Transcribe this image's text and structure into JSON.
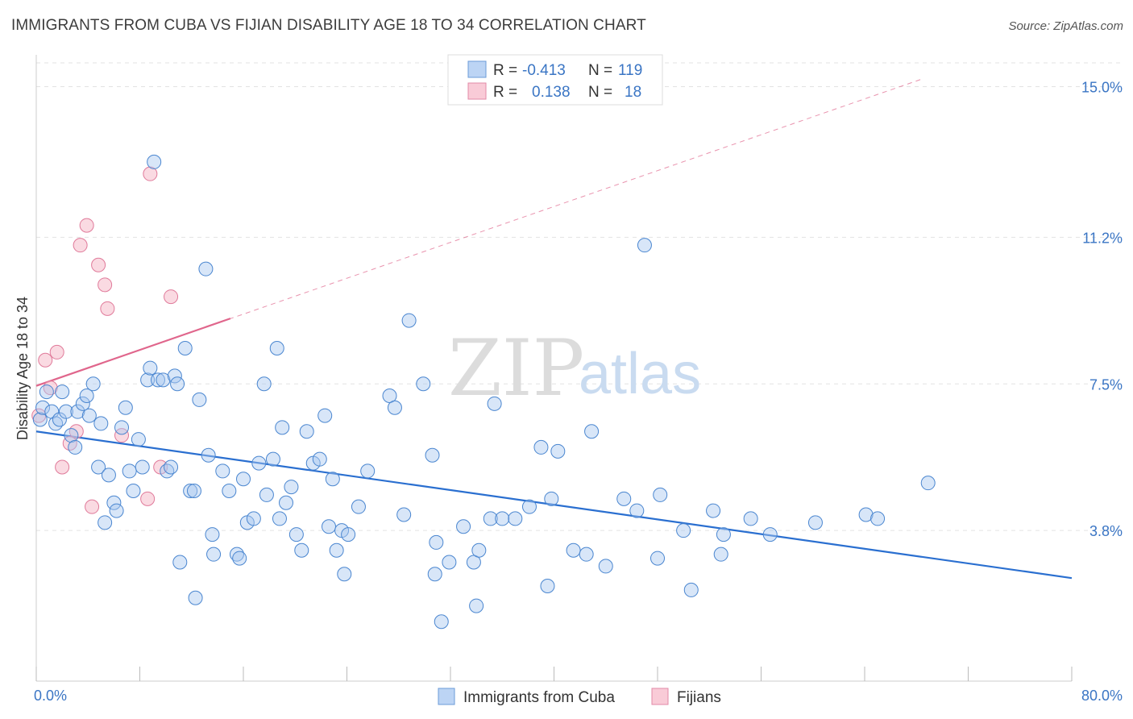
{
  "title": "IMMIGRANTS FROM CUBA VS FIJIAN DISABILITY AGE 18 TO 34 CORRELATION CHART",
  "source": "Source: ZipAtlas.com",
  "watermark": {
    "zip": "ZIP",
    "atlas": "atlas"
  },
  "colors": {
    "blue": "#a9c8ef",
    "blue_stroke": "#4a86d0",
    "blue_line": "#2a6fd0",
    "pink": "#f6bccb",
    "pink_stroke": "#e07a9a",
    "pink_line": "#e0668c",
    "grid": "#e3e3e3",
    "tick_text": "#3a75c4"
  },
  "legend": {
    "rows": [
      {
        "r_label": "R =",
        "r_value": "-0.413",
        "n_label": "N =",
        "n_value": "119"
      },
      {
        "r_label": "R =",
        "r_value": "0.138",
        "n_label": "N =",
        "n_value": "18"
      }
    ]
  },
  "bottom_legend": [
    "Immigrants from Cuba",
    "Fijians"
  ],
  "chart_data": {
    "type": "scatter",
    "title": "IMMIGRANTS FROM CUBA VS FIJIAN DISABILITY AGE 18 TO 34 CORRELATION CHART",
    "xlabel": "",
    "ylabel": "Disability Age 18 to 34",
    "xlim": [
      0,
      80
    ],
    "ylim": [
      0,
      15.6
    ],
    "x_tick_labels": [
      "0.0%",
      "80.0%"
    ],
    "y_ticks": [
      3.8,
      7.5,
      11.2,
      15.0
    ],
    "y_tick_labels": [
      "3.8%",
      "7.5%",
      "11.2%",
      "15.0%"
    ],
    "grid": true,
    "legend_position": "top-center",
    "series": [
      {
        "name": "Immigrants from Cuba",
        "color": "#a9c8ef",
        "trend": {
          "x": [
            0,
            80
          ],
          "y": [
            6.3,
            2.6
          ]
        },
        "points": [
          [
            0.3,
            6.6
          ],
          [
            0.5,
            6.9
          ],
          [
            0.8,
            7.3
          ],
          [
            1.2,
            6.8
          ],
          [
            1.5,
            6.5
          ],
          [
            1.8,
            6.6
          ],
          [
            2.0,
            7.3
          ],
          [
            2.3,
            6.8
          ],
          [
            2.7,
            6.2
          ],
          [
            3.0,
            5.9
          ],
          [
            3.2,
            6.8
          ],
          [
            3.6,
            7.0
          ],
          [
            3.9,
            7.2
          ],
          [
            4.1,
            6.7
          ],
          [
            4.4,
            7.5
          ],
          [
            4.8,
            5.4
          ],
          [
            5.0,
            6.5
          ],
          [
            5.3,
            4.0
          ],
          [
            5.6,
            5.2
          ],
          [
            6.0,
            4.5
          ],
          [
            6.2,
            4.3
          ],
          [
            6.6,
            6.4
          ],
          [
            6.9,
            6.9
          ],
          [
            7.2,
            5.3
          ],
          [
            7.5,
            4.8
          ],
          [
            7.9,
            6.1
          ],
          [
            8.2,
            5.4
          ],
          [
            8.6,
            7.6
          ],
          [
            8.8,
            7.9
          ],
          [
            9.1,
            13.1
          ],
          [
            9.4,
            7.6
          ],
          [
            9.8,
            7.6
          ],
          [
            10.1,
            5.3
          ],
          [
            10.4,
            5.4
          ],
          [
            10.7,
            7.7
          ],
          [
            10.9,
            7.5
          ],
          [
            11.1,
            3.0
          ],
          [
            11.5,
            8.4
          ],
          [
            11.9,
            4.8
          ],
          [
            12.2,
            4.8
          ],
          [
            12.3,
            2.1
          ],
          [
            12.6,
            7.1
          ],
          [
            13.1,
            10.4
          ],
          [
            13.3,
            5.7
          ],
          [
            13.6,
            3.7
          ],
          [
            13.7,
            3.2
          ],
          [
            14.4,
            5.3
          ],
          [
            14.9,
            4.8
          ],
          [
            15.5,
            3.2
          ],
          [
            15.7,
            3.1
          ],
          [
            16.0,
            5.1
          ],
          [
            16.3,
            4.0
          ],
          [
            16.8,
            4.1
          ],
          [
            17.2,
            5.5
          ],
          [
            17.6,
            7.5
          ],
          [
            17.8,
            4.7
          ],
          [
            18.3,
            5.6
          ],
          [
            18.6,
            8.4
          ],
          [
            18.8,
            4.1
          ],
          [
            19.0,
            6.4
          ],
          [
            19.3,
            4.5
          ],
          [
            19.7,
            4.9
          ],
          [
            20.1,
            3.7
          ],
          [
            20.5,
            3.3
          ],
          [
            20.9,
            6.3
          ],
          [
            21.4,
            5.5
          ],
          [
            21.9,
            5.6
          ],
          [
            22.3,
            6.7
          ],
          [
            22.6,
            3.9
          ],
          [
            22.9,
            5.1
          ],
          [
            23.2,
            3.3
          ],
          [
            23.6,
            3.8
          ],
          [
            23.8,
            2.7
          ],
          [
            24.1,
            3.7
          ],
          [
            24.9,
            4.4
          ],
          [
            25.6,
            5.3
          ],
          [
            27.3,
            7.2
          ],
          [
            27.7,
            6.9
          ],
          [
            28.4,
            4.2
          ],
          [
            28.8,
            9.1
          ],
          [
            29.9,
            7.5
          ],
          [
            30.6,
            5.7
          ],
          [
            30.8,
            2.7
          ],
          [
            30.9,
            3.5
          ],
          [
            31.3,
            1.5
          ],
          [
            31.9,
            3.0
          ],
          [
            33.0,
            3.9
          ],
          [
            33.8,
            3.0
          ],
          [
            34.0,
            1.9
          ],
          [
            34.2,
            3.3
          ],
          [
            35.1,
            4.1
          ],
          [
            35.4,
            7.0
          ],
          [
            36.0,
            4.1
          ],
          [
            37.0,
            4.1
          ],
          [
            38.1,
            4.4
          ],
          [
            39.0,
            5.9
          ],
          [
            39.5,
            2.4
          ],
          [
            39.8,
            4.6
          ],
          [
            40.3,
            5.8
          ],
          [
            41.5,
            3.3
          ],
          [
            42.5,
            3.2
          ],
          [
            42.9,
            6.3
          ],
          [
            44.0,
            2.9
          ],
          [
            45.4,
            4.6
          ],
          [
            46.4,
            4.3
          ],
          [
            47.0,
            11.0
          ],
          [
            48.0,
            3.1
          ],
          [
            48.2,
            4.7
          ],
          [
            50.0,
            3.8
          ],
          [
            50.6,
            2.3
          ],
          [
            52.3,
            4.3
          ],
          [
            52.9,
            3.2
          ],
          [
            53.1,
            3.7
          ],
          [
            55.2,
            4.1
          ],
          [
            56.7,
            3.7
          ],
          [
            60.2,
            4.0
          ],
          [
            64.1,
            4.2
          ],
          [
            65.0,
            4.1
          ],
          [
            68.9,
            5.0
          ]
        ]
      },
      {
        "name": "Fijians",
        "color": "#f6bccb",
        "trend": {
          "x": [
            0,
            15
          ],
          "y": [
            7.45,
            9.15
          ],
          "extended_x": [
            0,
            68.5
          ],
          "extended_y": [
            7.45,
            15.2
          ]
        },
        "points": [
          [
            0.2,
            6.7
          ],
          [
            0.7,
            8.1
          ],
          [
            1.1,
            7.4
          ],
          [
            1.6,
            8.3
          ],
          [
            2.0,
            5.4
          ],
          [
            2.6,
            6.0
          ],
          [
            3.1,
            6.3
          ],
          [
            3.4,
            11.0
          ],
          [
            3.9,
            11.5
          ],
          [
            4.3,
            4.4
          ],
          [
            4.8,
            10.5
          ],
          [
            5.3,
            10.0
          ],
          [
            5.5,
            9.4
          ],
          [
            6.6,
            6.2
          ],
          [
            8.6,
            4.6
          ],
          [
            8.8,
            12.8
          ],
          [
            9.6,
            5.4
          ],
          [
            10.4,
            9.7
          ]
        ]
      }
    ]
  }
}
